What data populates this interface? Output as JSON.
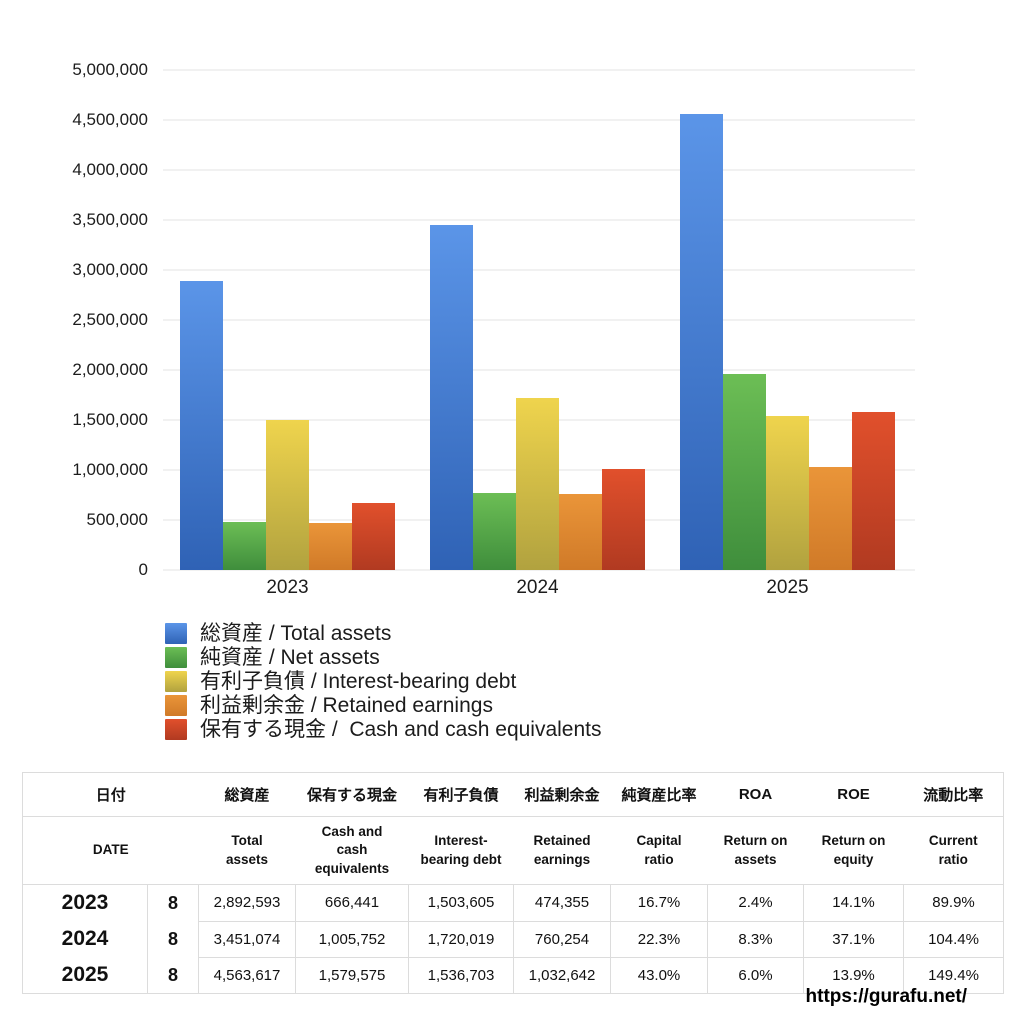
{
  "chart_data": {
    "type": "bar",
    "title": "",
    "xlabel": "",
    "ylabel": "",
    "categories": [
      "2023",
      "2024",
      "2025"
    ],
    "series": [
      {
        "id": "total-assets",
        "name": "総資産 / Total assets",
        "color_top": "#5B95E8",
        "color_bottom": "#2F62B5",
        "values": [
          2892593,
          3451074,
          4563617
        ]
      },
      {
        "id": "net-assets",
        "name": "純資産 / Net assets",
        "color_top": "#6CBE55",
        "color_bottom": "#3F8E3C",
        "values": [
          483063,
          769590,
          1962355
        ]
      },
      {
        "id": "interest-bearing-debt",
        "name": "有利子負債 / Interest-bearing debt",
        "color_top": "#EFD44D",
        "color_bottom": "#B1A23F",
        "values": [
          1503605,
          1720019,
          1536703
        ]
      },
      {
        "id": "retained-earnings",
        "name": "利益剰余金 / Retained earnings",
        "color_top": "#EA9539",
        "color_bottom": "#D07A28",
        "values": [
          474355,
          760254,
          1032642
        ]
      },
      {
        "id": "cash",
        "name": "保有する現金 /  Cash and cash equivalents",
        "color_top": "#E1502C",
        "color_bottom": "#B13A21",
        "values": [
          666441,
          1005752,
          1579575
        ]
      }
    ],
    "ylim": [
      0,
      5000000
    ],
    "ytick_step": 500000,
    "yticks": [
      "5,000,000",
      "4,500,000",
      "4,000,000",
      "3,500,000",
      "3,000,000",
      "2,500,000",
      "2,000,000",
      "1,500,000",
      "1,000,000",
      "500,000",
      "0"
    ],
    "grid": true,
    "legend_position": "bottom-left"
  },
  "table": {
    "header_jp": [
      "日付",
      "総資産",
      "保有する現金",
      "有利子負債",
      "利益剰余金",
      "純資産比率",
      "ROA",
      "ROE",
      "流動比率"
    ],
    "header_en": [
      "DATE",
      "Total assets",
      "Cash and cash equivalents",
      "Interest-bearing debt",
      "Retained earnings",
      "Capital ratio",
      "Return on assets",
      "Return on equity",
      "Current ratio"
    ],
    "rows": [
      {
        "year": "2023",
        "month": "8",
        "values": [
          "2,892,593",
          "666,441",
          "1,503,605",
          "474,355",
          "16.7%",
          "2.4%",
          "14.1%",
          "89.9%"
        ]
      },
      {
        "year": "2024",
        "month": "8",
        "values": [
          "3,451,074",
          "1,005,752",
          "1,720,019",
          "760,254",
          "22.3%",
          "8.3%",
          "37.1%",
          "104.4%"
        ]
      },
      {
        "year": "2025",
        "month": "8",
        "values": [
          "4,563,617",
          "1,579,575",
          "1,536,703",
          "1,032,642",
          "43.0%",
          "6.0%",
          "13.9%",
          "149.4%"
        ]
      }
    ]
  },
  "footer": {
    "url": "https://gurafu.net/"
  }
}
